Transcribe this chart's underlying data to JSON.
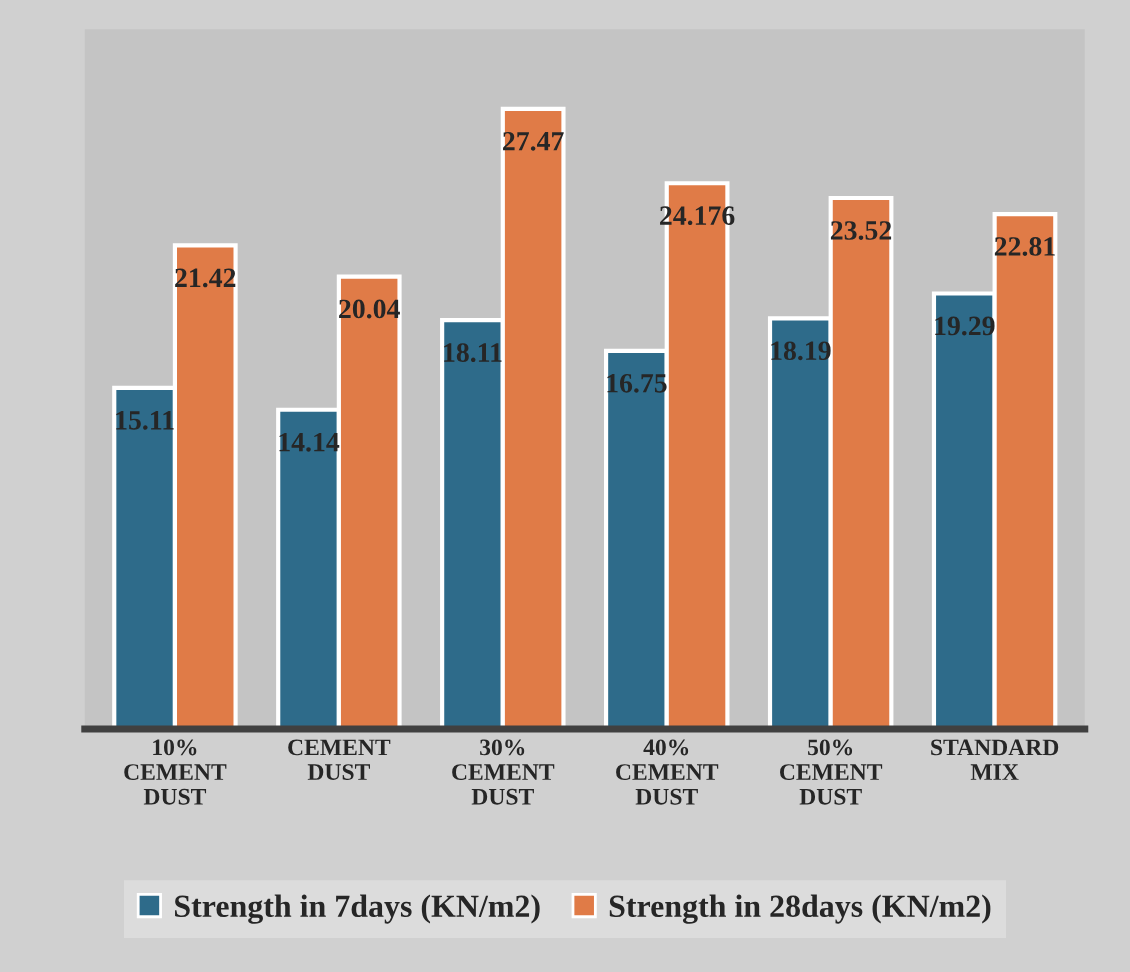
{
  "chart_data": {
    "type": "bar",
    "categories": [
      "10%\nCEMENT\nDUST",
      "CEMENT\nDUST",
      "30%\nCEMENT\nDUST",
      "40%\nCEMENT\nDUST",
      "50%\nCEMENT\nDUST",
      "STANDARD\nMIX"
    ],
    "series": [
      {
        "name": "Strength in 7days (KN/m2)",
        "color": "#2e6b8a",
        "values": [
          15.11,
          14.14,
          18.11,
          16.75,
          18.19,
          19.29
        ]
      },
      {
        "name": "Strength in 28days (KN/m2)",
        "color": "#e07b47",
        "values": [
          21.42,
          20.04,
          27.47,
          24.176,
          23.52,
          22.81
        ]
      }
    ],
    "ylim": [
      0,
      31
    ],
    "tick_labels": "x",
    "data_labels": true,
    "legend": "bottom",
    "grid": false
  }
}
